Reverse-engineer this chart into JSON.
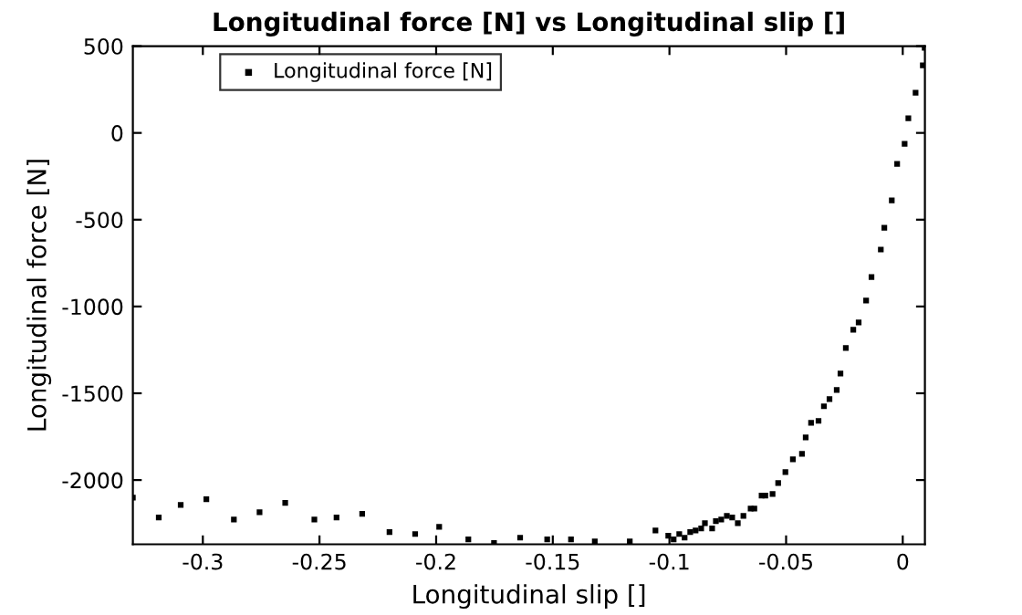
{
  "chart_data": {
    "type": "scatter",
    "title": "Longitudinal force [N] vs Longitudinal slip []",
    "xlabel": "Longitudinal slip []",
    "ylabel": "Longitudinal force [N]",
    "xlim": [
      -0.33,
      0.0095
    ],
    "ylim": [
      -2370,
      500
    ],
    "xticks": [
      -0.3,
      -0.25,
      -0.2,
      -0.15,
      -0.1,
      -0.05,
      0
    ],
    "yticks": [
      -2000,
      -1500,
      -1000,
      -500,
      0,
      500
    ],
    "grid": false,
    "legend": "top left",
    "marker": "square",
    "series": [
      {
        "name": "Longitudinal force [N]",
        "color": "#000000",
        "x": [
          -0.33,
          -0.3189,
          -0.3095,
          -0.2985,
          -0.2867,
          -0.2757,
          -0.2647,
          -0.2522,
          -0.2427,
          -0.2317,
          -0.22,
          -0.209,
          -0.1987,
          -0.1862,
          -0.1752,
          -0.164,
          -0.1524,
          -0.1422,
          -0.132,
          -0.117,
          -0.106,
          -0.1005,
          -0.0982,
          -0.0958,
          -0.0935,
          -0.0911,
          -0.0888,
          -0.0864,
          -0.0848,
          -0.0817,
          -0.0801,
          -0.0778,
          -0.0754,
          -0.0731,
          -0.0707,
          -0.0683,
          -0.0652,
          -0.0636,
          -0.0605,
          -0.0589,
          -0.0558,
          -0.0534,
          -0.0503,
          -0.0471,
          -0.0432,
          -0.0416,
          -0.0393,
          -0.0361,
          -0.0338,
          -0.0314,
          -0.0283,
          -0.0267,
          -0.0244,
          -0.0212,
          -0.0189,
          -0.0157,
          -0.0134,
          -0.0094,
          -0.0079,
          -0.0047,
          -0.0024,
          0.0008,
          0.0024,
          0.0055,
          0.0086,
          0.0094
        ],
        "values": [
          -2101,
          -2216,
          -2143,
          -2111,
          -2227,
          -2185,
          -2132,
          -2227,
          -2216,
          -2195,
          -2300,
          -2311,
          -2269,
          -2342,
          -2363,
          -2332,
          -2342,
          -2342,
          -2353,
          -2353,
          -2290,
          -2321,
          -2342,
          -2311,
          -2332,
          -2300,
          -2290,
          -2279,
          -2248,
          -2279,
          -2237,
          -2227,
          -2206,
          -2216,
          -2248,
          -2206,
          -2164,
          -2164,
          -2090,
          -2090,
          -2080,
          -2017,
          -1954,
          -1880,
          -1849,
          -1754,
          -1670,
          -1659,
          -1575,
          -1533,
          -1481,
          -1386,
          -1239,
          -1134,
          -1092,
          -966,
          -830,
          -672,
          -546,
          -389,
          -179,
          -63,
          84,
          231,
          389,
          490
        ]
      }
    ]
  }
}
